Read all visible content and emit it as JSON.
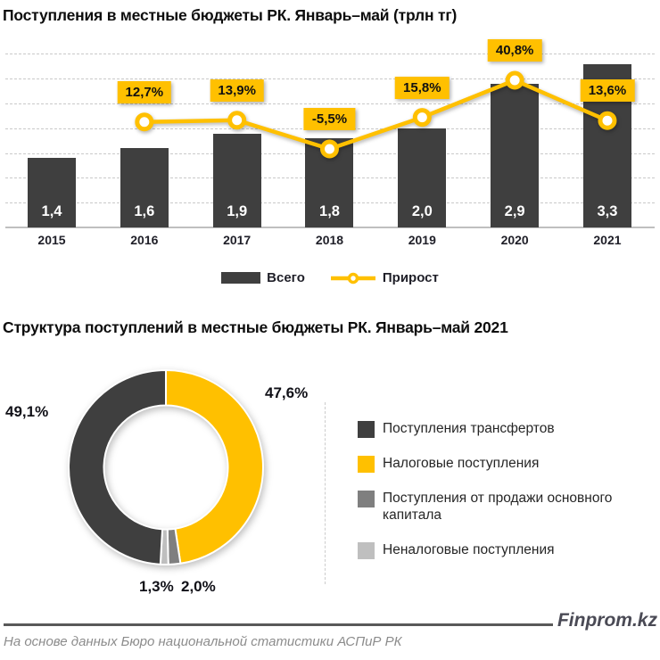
{
  "footer": {
    "brand": "Finprom.kz",
    "source": "На основе данных Бюро национальной статистики АСПиР РК"
  },
  "colors": {
    "accent_yellow": "#FFC000",
    "bar_dark": "#3F3F3F",
    "gray_medium": "#7F7F7F",
    "gray_light": "#BFBFBF"
  },
  "chart_data": [
    {
      "type": "bar",
      "title": "Поступления в местные бюджеты РК. Январь–май (трлн тг)",
      "categories": [
        "2015",
        "2016",
        "2017",
        "2018",
        "2019",
        "2020",
        "2021"
      ],
      "series": [
        {
          "name": "Всего",
          "type": "bar",
          "color": "#3F3F3F",
          "values": [
            1.4,
            1.6,
            1.9,
            1.8,
            2.0,
            2.9,
            3.3
          ],
          "labels": [
            "1,4",
            "1,6",
            "1,9",
            "1,8",
            "2,0",
            "2,9",
            "3,3"
          ]
        },
        {
          "name": "Прирост",
          "type": "line",
          "color": "#FFC000",
          "values": [
            null,
            12.7,
            13.9,
            -5.5,
            15.8,
            40.8,
            13.6
          ],
          "labels": [
            null,
            "12,7%",
            "13,9%",
            "-5,5%",
            "15,8%",
            "40,8%",
            "13,6%"
          ]
        }
      ],
      "ylabel": "",
      "xlabel": "",
      "ylim": [
        0,
        3.5
      ],
      "grid": "horizontal-dashed",
      "legend_position": "bottom"
    },
    {
      "type": "pie",
      "title": "Структура поступлений в местные бюджеты РК. Январь–май 2021",
      "donut": true,
      "start_angle_deg": 0,
      "direction": "clockwise",
      "slices": [
        {
          "label": "Налоговые поступления",
          "value": 47.6,
          "text": "47,6%",
          "color": "#FFC000"
        },
        {
          "label": "Поступления от продажи основного капитала",
          "value": 2.0,
          "text": "2,0%",
          "color": "#7F7F7F"
        },
        {
          "label": "Неналоговые поступления",
          "value": 1.3,
          "text": "1,3%",
          "color": "#BFBFBF"
        },
        {
          "label": "Поступления трансфертов",
          "value": 49.1,
          "text": "49,1%",
          "color": "#3F3F3F"
        }
      ],
      "legend": [
        {
          "label": "Поступления трансфертов",
          "color": "#3F3F3F"
        },
        {
          "label": "Налоговые поступления",
          "color": "#FFC000"
        },
        {
          "label": "Поступления от продажи основного капитала",
          "color": "#7F7F7F"
        },
        {
          "label": "Неналоговые поступления",
          "color": "#BFBFBF"
        }
      ],
      "legend_position": "right"
    }
  ]
}
